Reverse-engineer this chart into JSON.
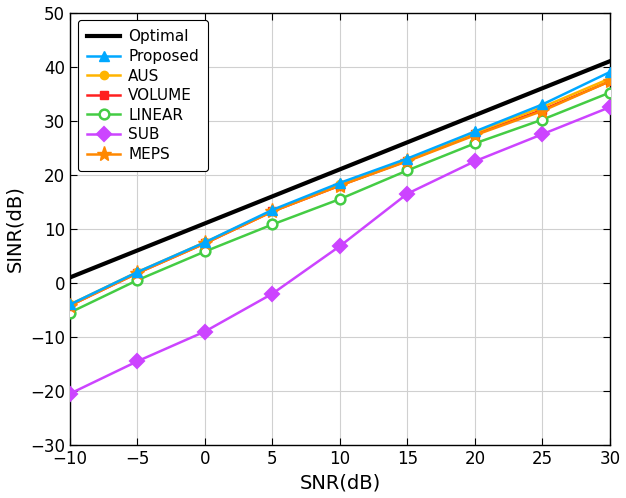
{
  "snr": [
    -10,
    -5,
    0,
    5,
    10,
    15,
    20,
    25,
    30
  ],
  "optimal": [
    1.0,
    6.0,
    11.0,
    16.0,
    21.0,
    26.0,
    31.0,
    36.0,
    41.0
  ],
  "proposed": [
    -4.0,
    2.0,
    7.5,
    13.5,
    18.5,
    23.0,
    28.0,
    33.0,
    39.0
  ],
  "aus": [
    -4.0,
    2.0,
    7.5,
    13.3,
    18.2,
    22.8,
    27.8,
    32.5,
    37.8
  ],
  "volume": [
    -4.2,
    1.8,
    7.3,
    13.2,
    18.0,
    22.6,
    27.5,
    32.0,
    37.3
  ],
  "linear": [
    -5.5,
    0.5,
    5.8,
    10.8,
    15.5,
    20.8,
    25.8,
    30.2,
    35.2
  ],
  "sub": [
    -20.5,
    -14.5,
    -9.0,
    -2.0,
    6.8,
    16.5,
    22.5,
    27.5,
    32.5
  ],
  "meps": [
    -4.2,
    1.8,
    7.3,
    13.2,
    18.0,
    22.5,
    27.3,
    31.8,
    37.3
  ],
  "colors": {
    "optimal": "#000000",
    "proposed": "#00a8ff",
    "aus": "#ffb400",
    "volume": "#ff2020",
    "linear": "#44cc44",
    "sub": "#cc44ff",
    "meps": "#ff8800"
  },
  "xlabel": "SNR(dB)",
  "ylabel": "SINR(dB)",
  "xlim": [
    -10,
    30
  ],
  "ylim": [
    -30,
    50
  ],
  "xticks": [
    -10,
    -5,
    0,
    5,
    10,
    15,
    20,
    25,
    30
  ],
  "yticks": [
    -30,
    -20,
    -10,
    0,
    10,
    20,
    30,
    40,
    50
  ],
  "legend_labels": [
    "Optimal",
    "Proposed",
    "AUS",
    "VOLUME",
    "LINEAR",
    "SUB",
    "MEPS"
  ]
}
